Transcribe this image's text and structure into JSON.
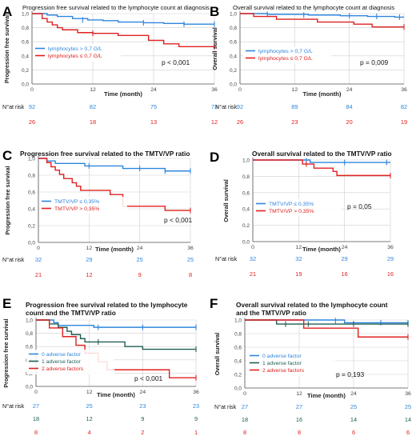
{
  "colors": {
    "blue": "#2e86de",
    "red": "#e02020",
    "green": "#1f5f55",
    "axis": "#555555",
    "grid": "#cfcfcf"
  },
  "chart_data": [
    {
      "panel": "A",
      "type": "line",
      "title": "Progression free survival related to the lymphocyte count at diagnosis",
      "xlabel": "Time (month)",
      "ylabel": "Progression free survival",
      "xticks": [
        0,
        12,
        24,
        36
      ],
      "yticks": [
        "0,0",
        "0,2",
        "0,4",
        "0,6",
        "0,8",
        "1,0"
      ],
      "ylim": [
        0,
        1
      ],
      "xlim": [
        0,
        36
      ],
      "legend_position": "bottom-left",
      "pvalue": "p < 0,001",
      "risk_label": "N°at risk",
      "series": [
        {
          "name": "lymphocytes > 0,7 G/L",
          "color": "blue",
          "points": [
            [
              0,
              1.0
            ],
            [
              3,
              0.98
            ],
            [
              5,
              0.96
            ],
            [
              8,
              0.93
            ],
            [
              11,
              0.91
            ],
            [
              14,
              0.9
            ],
            [
              17,
              0.88
            ],
            [
              22,
              0.87
            ],
            [
              26,
              0.86
            ],
            [
              30,
              0.85
            ],
            [
              33,
              0.85
            ],
            [
              36,
              0.85
            ]
          ],
          "censors": [
            [
              10,
              0.91
            ],
            [
              22,
              0.87
            ],
            [
              30,
              0.85
            ],
            [
              36,
              0.85
            ]
          ],
          "at_risk": [
            "92",
            "82",
            "75",
            "73"
          ]
        },
        {
          "name": "lymphocytes ≤ 0,7 G/L",
          "color": "red",
          "points": [
            [
              0,
              1.0
            ],
            [
              2,
              0.93
            ],
            [
              3,
              0.88
            ],
            [
              4,
              0.84
            ],
            [
              5,
              0.8
            ],
            [
              6,
              0.77
            ],
            [
              9,
              0.73
            ],
            [
              12,
              0.72
            ],
            [
              17,
              0.69
            ],
            [
              23,
              0.62
            ],
            [
              26,
              0.57
            ],
            [
              29,
              0.53
            ],
            [
              36,
              0.53
            ]
          ],
          "censors": [
            [
              12,
              0.72
            ],
            [
              36,
              0.53
            ]
          ],
          "at_risk": [
            "26",
            "18",
            "13",
            "12"
          ]
        }
      ]
    },
    {
      "panel": "B",
      "type": "line",
      "title": "Overall survival related to the lymphocyte count at diagnosis",
      "xlabel": "Time (month)",
      "ylabel": "Overall survival",
      "xticks": [
        0,
        12,
        24,
        36
      ],
      "yticks": [
        "0,0",
        "0,2",
        "0,4",
        "0,6",
        "0,8",
        "1,0"
      ],
      "ylim": [
        0,
        1
      ],
      "xlim": [
        0,
        36
      ],
      "legend_position": "bottom-left",
      "pvalue": "p = 0,009",
      "risk_label": "N°at risk",
      "series": [
        {
          "name": "lymphocytes > 0,7 G/L",
          "color": "blue",
          "points": [
            [
              0,
              1.0
            ],
            [
              6,
              0.99
            ],
            [
              15,
              0.98
            ],
            [
              22,
              0.97
            ],
            [
              28,
              0.96
            ],
            [
              34,
              0.95
            ],
            [
              36,
              0.95
            ]
          ],
          "censors": [
            [
              6,
              0.99
            ],
            [
              14,
              0.98
            ],
            [
              24,
              0.97
            ],
            [
              30,
              0.96
            ],
            [
              35,
              0.95
            ]
          ],
          "at_risk": [
            "92",
            "89",
            "84",
            "82"
          ]
        },
        {
          "name": "lymphocytes ≤ 0,7 G/L",
          "color": "red",
          "points": [
            [
              0,
              1.0
            ],
            [
              3,
              0.96
            ],
            [
              8,
              0.92
            ],
            [
              17,
              0.88
            ],
            [
              25,
              0.85
            ],
            [
              29,
              0.81
            ],
            [
              36,
              0.81
            ]
          ],
          "censors": [
            [
              36,
              0.81
            ]
          ],
          "at_risk": [
            "26",
            "23",
            "20",
            "19"
          ]
        }
      ]
    },
    {
      "panel": "C",
      "type": "line",
      "title": "Progression free survival related to the TMTV/VP ratio",
      "xlabel": "Time (month)",
      "ylabel": "Progression free survival",
      "xticks": [
        0,
        12,
        24,
        36
      ],
      "yticks": [
        "0,0",
        "0,2",
        "0,4",
        "0,6",
        "0,8",
        "1,0"
      ],
      "ylim": [
        0,
        1
      ],
      "xlim": [
        0,
        36
      ],
      "legend_position": "bottom-left",
      "pvalue": "p < 0,001",
      "risk_label": "N°at risk",
      "series": [
        {
          "name": "TMTV/VP ≤ 0,35%",
          "color": "blue",
          "points": [
            [
              0,
              1.0
            ],
            [
              2,
              0.97
            ],
            [
              4,
              0.94
            ],
            [
              11,
              0.91
            ],
            [
              20,
              0.88
            ],
            [
              30,
              0.85
            ],
            [
              36,
              0.85
            ]
          ],
          "censors": [
            [
              12,
              0.91
            ],
            [
              24,
              0.88
            ],
            [
              30,
              0.85
            ],
            [
              36,
              0.85
            ]
          ],
          "at_risk": [
            "32",
            "29",
            "25",
            "25"
          ]
        },
        {
          "name": "TMTV/VP > 0,35%",
          "color": "red",
          "points": [
            [
              0,
              1.0
            ],
            [
              2,
              0.95
            ],
            [
              3,
              0.9
            ],
            [
              4,
              0.86
            ],
            [
              5,
              0.81
            ],
            [
              6,
              0.76
            ],
            [
              8,
              0.71
            ],
            [
              9,
              0.67
            ],
            [
              10,
              0.62
            ],
            [
              12,
              0.62
            ],
            [
              17,
              0.57
            ],
            [
              20,
              0.43
            ],
            [
              30,
              0.38
            ],
            [
              36,
              0.38
            ]
          ],
          "censors": [
            [
              36,
              0.38
            ]
          ],
          "at_risk": [
            "21",
            "12",
            "9",
            "8"
          ]
        }
      ]
    },
    {
      "panel": "D",
      "type": "line",
      "title": "Overall survival related to the TMTV/VP ratio",
      "xlabel": "Time (month)",
      "ylabel": "Overall survival",
      "xticks": [
        0,
        12,
        24,
        36
      ],
      "yticks": [
        "0,0",
        "0,2",
        "0,4",
        "0,6",
        "0,8",
        "1,0"
      ],
      "ylim": [
        0,
        1
      ],
      "xlim": [
        0,
        36
      ],
      "legend_position": "bottom-left",
      "pvalue": "p = 0,05",
      "risk_label": "N°at risk",
      "series": [
        {
          "name": "TMTV/VP ≤ 0,35%",
          "color": "blue",
          "points": [
            [
              0,
              1.0
            ],
            [
              14,
              1.0
            ],
            [
              15,
              0.97
            ],
            [
              36,
              0.97
            ]
          ],
          "censors": [
            [
              14,
              0.99
            ],
            [
              24,
              0.97
            ],
            [
              35,
              0.97
            ]
          ],
          "at_risk": [
            "32",
            "32",
            "29",
            "29"
          ]
        },
        {
          "name": "TMTV/VP > 0,35%",
          "color": "red",
          "points": [
            [
              0,
              1.0
            ],
            [
              12,
              1.0
            ],
            [
              13,
              0.95
            ],
            [
              16,
              0.9
            ],
            [
              21,
              0.86
            ],
            [
              22,
              0.81
            ],
            [
              36,
              0.81
            ]
          ],
          "censors": [
            [
              14,
              0.95
            ],
            [
              36,
              0.81
            ]
          ],
          "at_risk": [
            "21",
            "19",
            "16",
            "16"
          ]
        }
      ]
    },
    {
      "panel": "E",
      "type": "line",
      "title": "Progression free survival related to the lymphocyte count and the TMTV/VP ratio",
      "title_lines": [
        "Progression free survival related to the lymphocyte",
        "count and the TMTV/VP ratio"
      ],
      "xlabel": "Time (month)",
      "ylabel": "Progression free survival",
      "xticks": [
        0,
        12,
        24,
        36
      ],
      "yticks": [
        "0,0",
        "0,2",
        "0,4",
        "0,6",
        "0,8",
        "1,0"
      ],
      "ylim": [
        0,
        1
      ],
      "xlim": [
        0,
        36
      ],
      "legend_position": "bottom-left",
      "pvalue": "p < 0,001",
      "risk_label": "N°at risk",
      "series": [
        {
          "name": "0 adverse factor",
          "color": "blue",
          "points": [
            [
              0,
              1.0
            ],
            [
              4,
              0.96
            ],
            [
              5,
              0.92
            ],
            [
              13,
              0.89
            ],
            [
              36,
              0.89
            ]
          ],
          "censors": [
            [
              14,
              0.89
            ],
            [
              24,
              0.89
            ],
            [
              36,
              0.89
            ]
          ],
          "at_risk": [
            "27",
            "25",
            "23",
            "23"
          ]
        },
        {
          "name": "1 adverse factor",
          "color": "green",
          "points": [
            [
              0,
              1.0
            ],
            [
              3,
              0.94
            ],
            [
              5,
              0.89
            ],
            [
              7,
              0.83
            ],
            [
              8,
              0.78
            ],
            [
              10,
              0.72
            ],
            [
              11,
              0.67
            ],
            [
              14,
              0.67
            ],
            [
              20,
              0.6
            ],
            [
              24,
              0.56
            ],
            [
              36,
              0.56
            ]
          ],
          "censors": [
            [
              14,
              0.67
            ],
            [
              36,
              0.56
            ]
          ],
          "at_risk": [
            "18",
            "12",
            "9",
            "9"
          ]
        },
        {
          "name": "2 adverse factors",
          "color": "red",
          "points": [
            [
              0,
              1.0
            ],
            [
              3,
              0.88
            ],
            [
              6,
              0.75
            ],
            [
              9,
              0.62
            ],
            [
              11,
              0.5
            ],
            [
              14,
              0.37
            ],
            [
              16,
              0.25
            ],
            [
              30,
              0.13
            ],
            [
              36,
              0.13
            ]
          ],
          "censors": [
            [
              36,
              0.13
            ]
          ],
          "at_risk": [
            "8",
            "4",
            "2",
            "1"
          ]
        }
      ]
    },
    {
      "panel": "F",
      "type": "line",
      "title": "Overall survival related to the lymphocyte count and the TMTV/VP ratio",
      "title_lines": [
        "Overall survival related to the lymphocyte count",
        "and the TMTV/VP ratio"
      ],
      "xlabel": "Time (month)",
      "ylabel": "Overall survival",
      "xticks": [
        0,
        12,
        24,
        36
      ],
      "yticks": [
        "0,0",
        "0,2",
        "0,4",
        "0,6",
        "0,8",
        "1,0"
      ],
      "ylim": [
        0,
        1
      ],
      "xlim": [
        0,
        36
      ],
      "legend_position": "bottom-left",
      "pvalue": "p = 0,193",
      "risk_label": "N°at risk",
      "series": [
        {
          "name": "0 adverse factor",
          "color": "blue",
          "points": [
            [
              0,
              1.0
            ],
            [
              20,
              1.0
            ],
            [
              22,
              0.96
            ],
            [
              36,
              0.96
            ]
          ],
          "censors": [
            [
              20,
              0.99
            ],
            [
              30,
              0.96
            ],
            [
              36,
              0.96
            ]
          ],
          "at_risk": [
            "27",
            "27",
            "25",
            "25"
          ]
        },
        {
          "name": "1 adverse factor",
          "color": "green",
          "points": [
            [
              0,
              1.0
            ],
            [
              7,
              0.94
            ],
            [
              36,
              0.94
            ]
          ],
          "censors": [
            [
              9,
              0.94
            ],
            [
              14,
              0.94
            ],
            [
              24,
              0.94
            ],
            [
              36,
              0.94
            ]
          ],
          "at_risk": [
            "18",
            "16",
            "14",
            "14"
          ]
        },
        {
          "name": "2 adverse factors",
          "color": "red",
          "points": [
            [
              0,
              1.0
            ],
            [
              12,
              1.0
            ],
            [
              13,
              0.88
            ],
            [
              24,
              0.88
            ],
            [
              25,
              0.75
            ],
            [
              36,
              0.75
            ]
          ],
          "censors": [
            [
              36,
              0.75
            ]
          ],
          "at_risk": [
            "8",
            "8",
            "6",
            "6"
          ]
        }
      ]
    }
  ]
}
